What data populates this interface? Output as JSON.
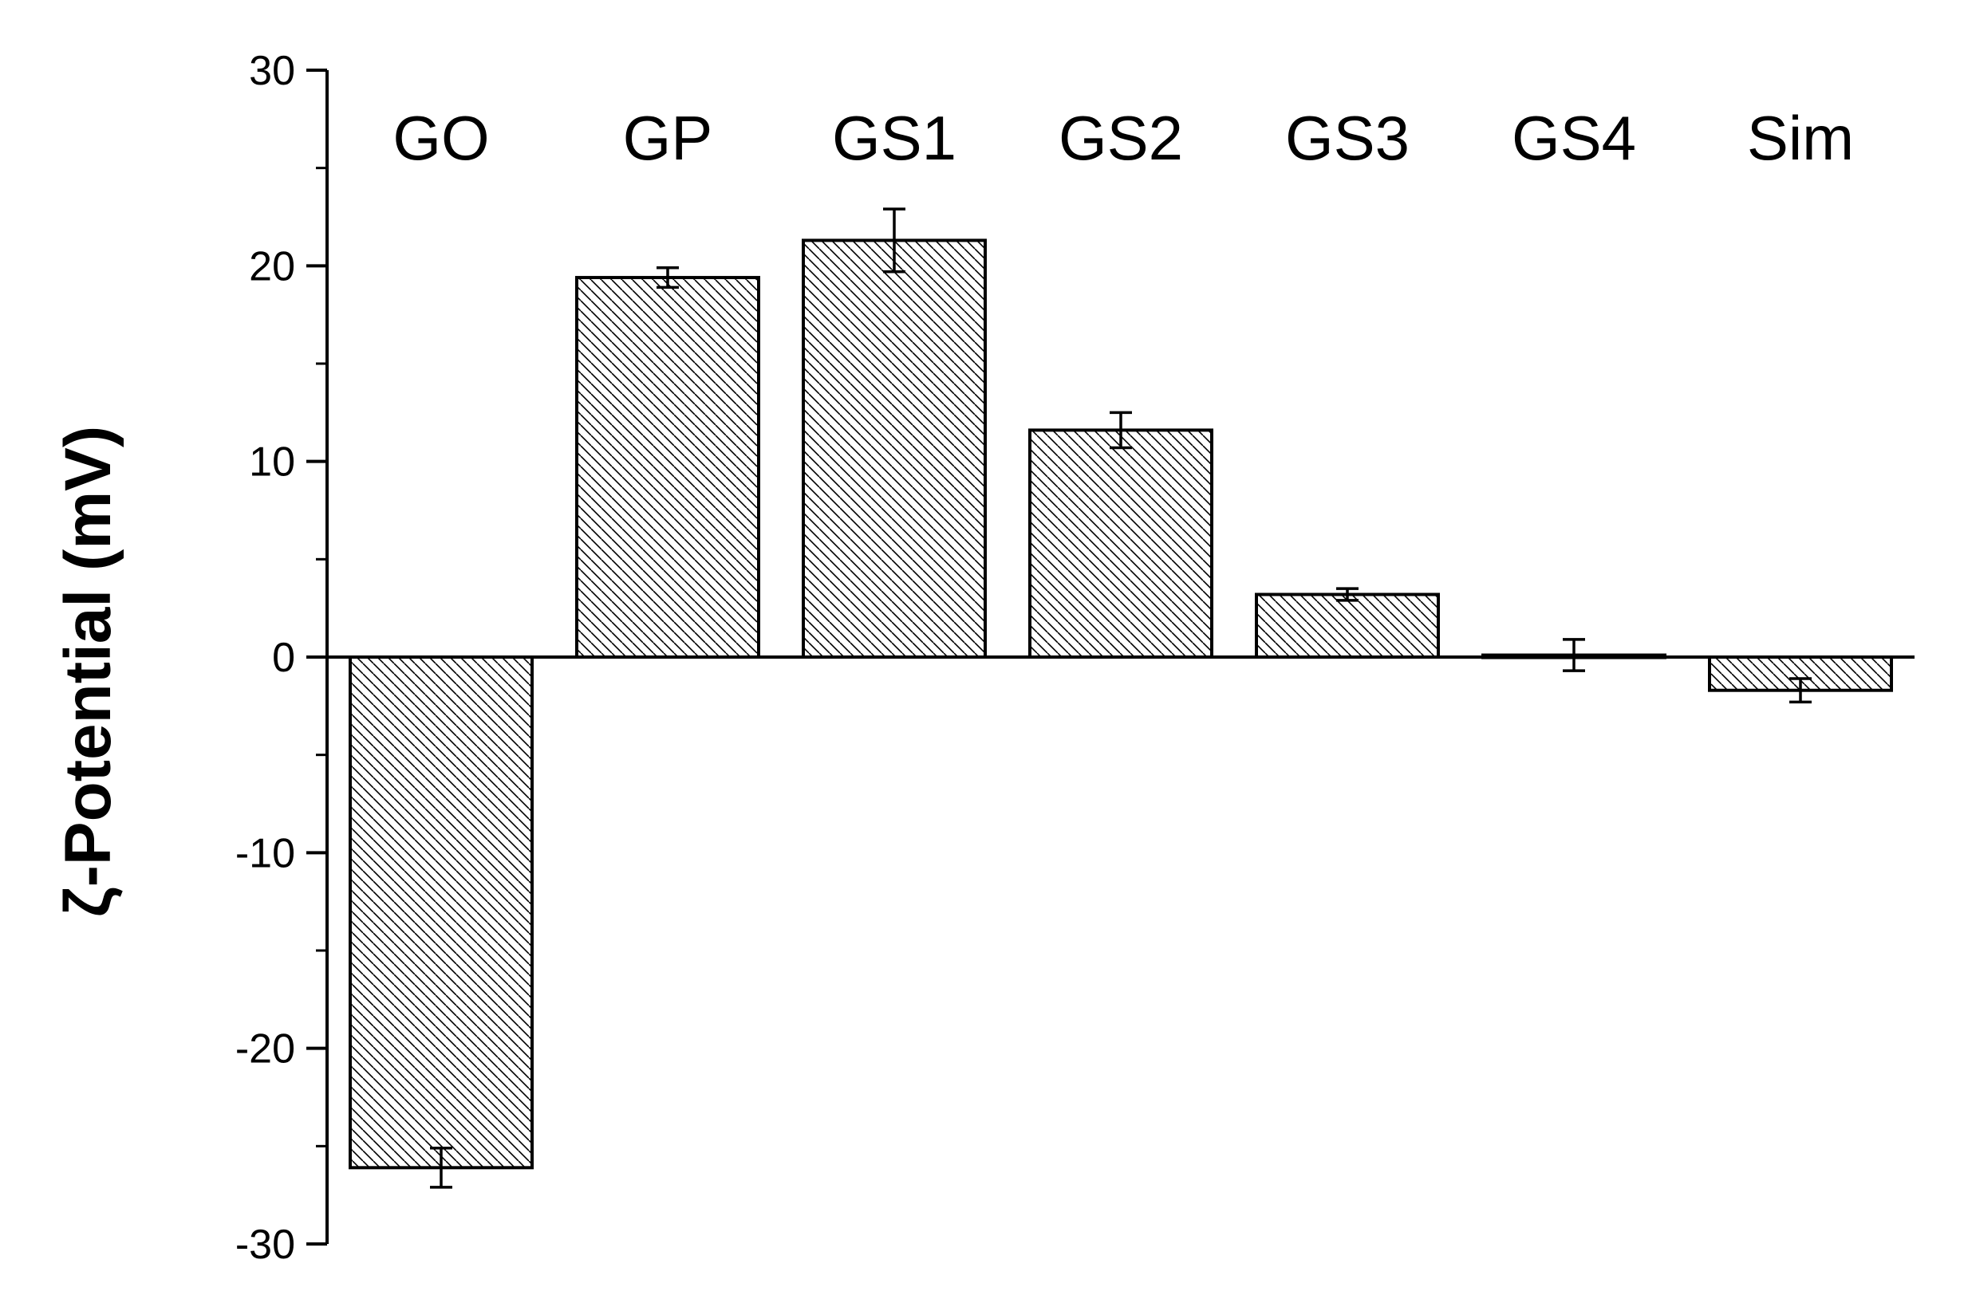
{
  "chart_data": {
    "type": "bar",
    "ylabel": "ζ-Potential (mV)",
    "xlabel": "",
    "ylim": [
      -30,
      30
    ],
    "yticks": [
      30,
      20,
      10,
      0,
      -10,
      -20,
      -30
    ],
    "ytick_labels": [
      "30",
      "20",
      "10",
      "0",
      "-10",
      "-20",
      "-30"
    ],
    "categories": [
      "GO",
      "GP",
      "GS1",
      "GS2",
      "GS3",
      "GS4",
      "Sim"
    ],
    "values": [
      -26.1,
      19.4,
      21.3,
      11.6,
      3.2,
      0.1,
      -1.7
    ],
    "errors": [
      1.0,
      0.5,
      1.6,
      0.9,
      0.3,
      0.8,
      0.6
    ],
    "bar_style": "diagonal hatch",
    "grid": false,
    "legend": "none",
    "colors": {
      "bar_fill": "#ffffff",
      "hatch": "#000000",
      "stroke": "#000000"
    }
  }
}
